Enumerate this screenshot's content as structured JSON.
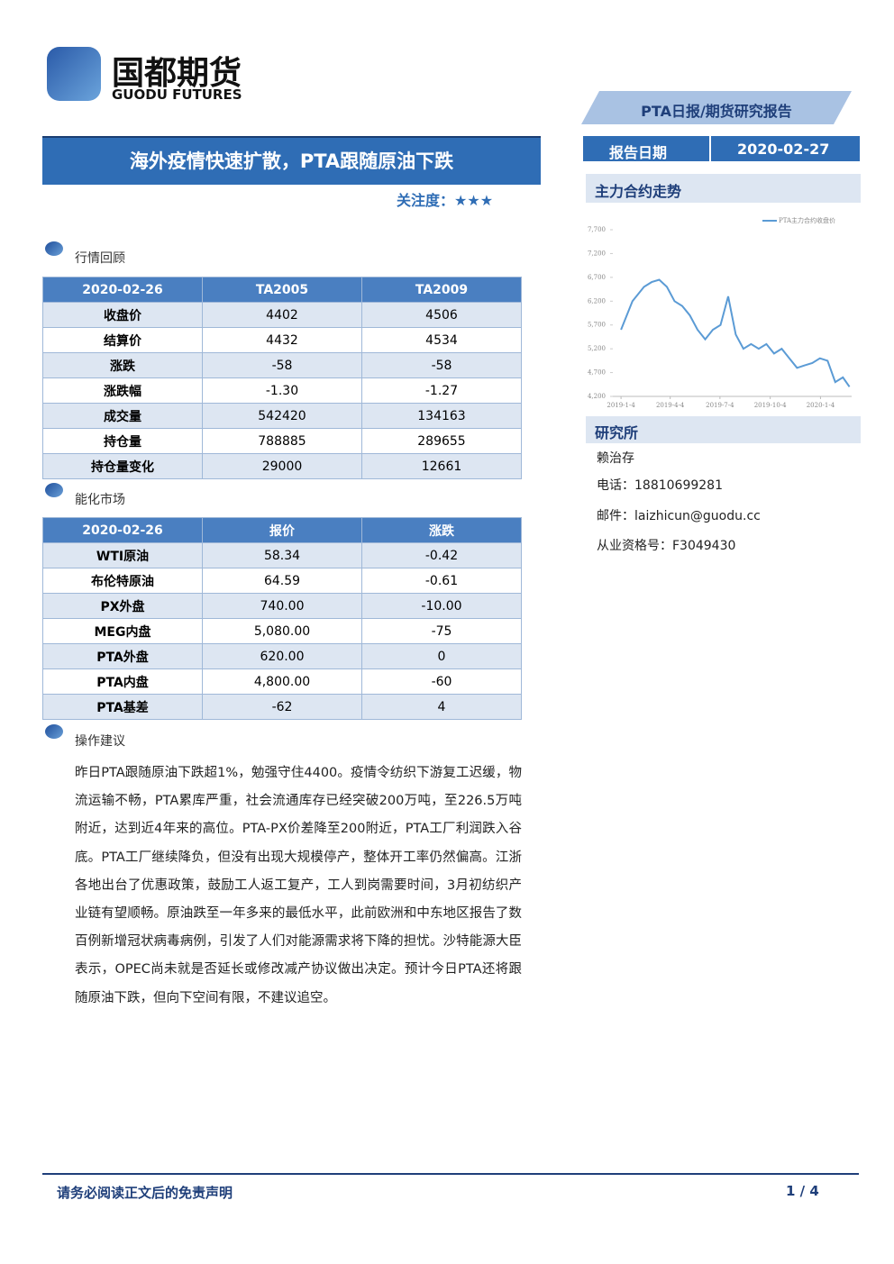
{
  "header": {
    "logo_cn": "国都期货",
    "logo_en": "GUODU FUTURES",
    "report_type": "PTA日报/期货研究报告",
    "title": "海外疫情快速扩散，PTA跟随原油下跌",
    "attention_label": "关注度：",
    "attention_stars": "★★★",
    "date_label": "报告日期",
    "date": "2020-02-27"
  },
  "market_review": {
    "heading": "行情回顾",
    "table": {
      "header": [
        "2020-02-26",
        "TA2005",
        "TA2009"
      ],
      "rows": [
        [
          "收盘价",
          "4402",
          "4506"
        ],
        [
          "结算价",
          "4432",
          "4534"
        ],
        [
          "涨跌",
          "-58",
          "-58"
        ],
        [
          "涨跌幅",
          "-1.30",
          "-1.27"
        ],
        [
          "成交量",
          "542420",
          "134163"
        ],
        [
          "持仓量",
          "788885",
          "289655"
        ],
        [
          "持仓量变化",
          "29000",
          "12661"
        ]
      ]
    }
  },
  "energy_market": {
    "heading": "能化市场",
    "table": {
      "header": [
        "2020-02-26",
        "报价",
        "涨跌"
      ],
      "rows": [
        [
          "WTI原油",
          "58.34",
          "-0.42"
        ],
        [
          "布伦特原油",
          "64.59",
          "-0.61"
        ],
        [
          "PX外盘",
          "740.00",
          "-10.00"
        ],
        [
          "MEG内盘",
          "5,080.00",
          "-75"
        ],
        [
          "PTA外盘",
          "620.00",
          "0"
        ],
        [
          "PTA内盘",
          "4,800.00",
          "-60"
        ],
        [
          "PTA基差",
          "-62",
          "4"
        ]
      ]
    }
  },
  "advice": {
    "heading": "操作建议",
    "text": "昨日PTA跟随原油下跌超1%，勉强守住4400。疫情令纺织下游复工迟缓，物流运输不畅，PTA累库严重，社会流通库存已经突破200万吨，至226.5万吨附近，达到近4年来的高位。PTA-PX价差降至200附近，PTA工厂利润跌入谷底。PTA工厂继续降负，但没有出现大规模停产，整体开工率仍然偏高。江浙各地出台了优惠政策，鼓励工人返工复产，工人到岗需要时间，3月初纺织产业链有望顺畅。原油跌至一年多来的最低水平，此前欧洲和中东地区报告了数百例新增冠状病毒病例，引发了人们对能源需求将下降的担忧。沙特能源大臣表示，OPEC尚未就是否延长或修改减产协议做出决定。预计今日PTA还将跟随原油下跌，但向下空间有限，不建议追空。"
  },
  "sidebar": {
    "chart_heading": "主力合约走势",
    "research_heading": "研究所",
    "analyst": "赖治存",
    "phone_label": "电话：",
    "phone": "18810699281",
    "email_label": "邮件：",
    "email": "laizhicun@guodu.cc",
    "cert_label": "从业资格号：",
    "cert": "F3049430"
  },
  "chart_data": {
    "type": "line",
    "series": [
      {
        "name": "PTA主力合约收盘价",
        "color": "#5b9bd5",
        "values": [
          5600,
          6200,
          6500,
          6600,
          6650,
          6500,
          6200,
          6100,
          5900,
          5600,
          5400,
          5600,
          5700,
          6300,
          5500,
          5200,
          5300,
          5200,
          5300,
          5100,
          5200,
          5000,
          4800,
          4850,
          4900,
          5000,
          4950,
          4500,
          4600,
          4402
        ]
      }
    ],
    "x": [
      "2019-01-04",
      "2019-01-25",
      "2019-02-15",
      "2019-03-01",
      "2019-03-15",
      "2019-03-29",
      "2019-04-12",
      "2019-04-26",
      "2019-05-10",
      "2019-05-24",
      "2019-06-07",
      "2019-06-21",
      "2019-07-05",
      "2019-07-19",
      "2019-08-02",
      "2019-08-16",
      "2019-08-30",
      "2019-09-13",
      "2019-09-27",
      "2019-10-11",
      "2019-10-25",
      "2019-11-08",
      "2019-11-22",
      "2019-12-06",
      "2019-12-20",
      "2020-01-03",
      "2020-01-17",
      "2020-01-31",
      "2020-02-14",
      "2020-02-26"
    ],
    "xlim": [
      "2018-12-20",
      "2020-03-01"
    ],
    "xticks": [
      "2019-1-4",
      "2019-4-4",
      "2019-7-4",
      "2019-10-4",
      "2020-1-4"
    ],
    "ylim": [
      4200,
      7700
    ],
    "yticks": [
      {
        "value": 4200,
        "label": "4,200"
      },
      {
        "value": 4700,
        "label": "4,700"
      },
      {
        "value": 5200,
        "label": "5,200"
      },
      {
        "value": 5700,
        "label": "5,700"
      },
      {
        "value": 6200,
        "label": "6,200"
      },
      {
        "value": 6700,
        "label": "6,700"
      },
      {
        "value": 7200,
        "label": "7,200"
      },
      {
        "value": 7700,
        "label": "7,700"
      }
    ]
  },
  "footer": {
    "disclaimer": "请务必阅读正文后的免责声明",
    "page": "1 / 4"
  }
}
